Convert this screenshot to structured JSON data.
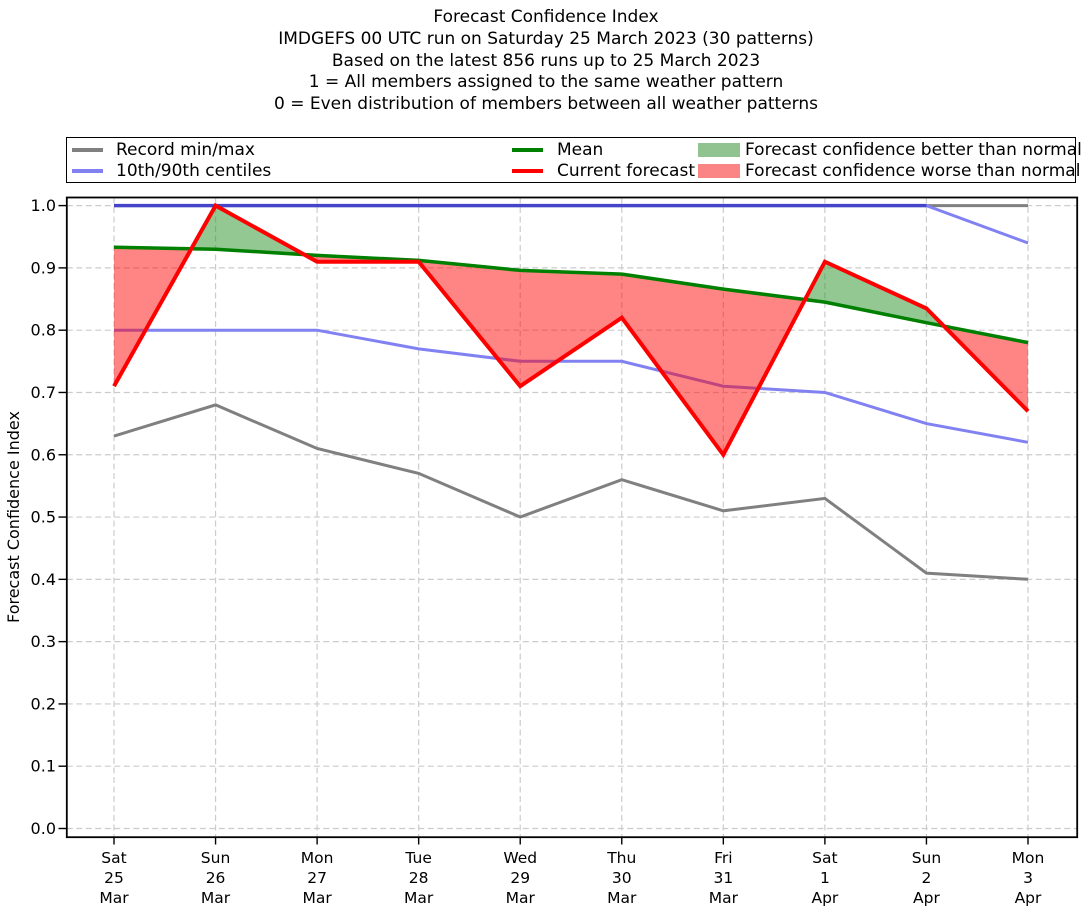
{
  "header": {
    "lines": [
      "Forecast Confidence Index",
      "IMDGEFS 00 UTC run on Saturday 25 March 2023 (30 patterns)",
      "Based on the latest 856 runs up to 25 March 2023",
      "1 = All members assigned to the same weather pattern",
      "0 = Even distribution of members between all weather patterns"
    ]
  },
  "legend": {
    "items": [
      {
        "label": "Record min/max",
        "type": "line",
        "color": "#808080"
      },
      {
        "label": "10th/90th centiles",
        "type": "line",
        "color": "#8181f2"
      },
      {
        "label": "Mean",
        "type": "line",
        "color": "#008000"
      },
      {
        "label": "Current forecast",
        "type": "line",
        "color": "#ff0000"
      },
      {
        "label": "Forecast confidence better than normal",
        "type": "patch",
        "color": "#90c390"
      },
      {
        "label": "Forecast confidence worse than normal",
        "type": "patch",
        "color": "#fb8585"
      }
    ]
  },
  "chart_data": {
    "type": "line",
    "title": "Forecast Confidence Index",
    "ylabel": "Forecast Confidence Index",
    "ylim": [
      0.0,
      1.0
    ],
    "yticks": [
      "0.0",
      "0.1",
      "0.2",
      "0.3",
      "0.4",
      "0.5",
      "0.6",
      "0.7",
      "0.8",
      "0.9",
      "1.0"
    ],
    "grid": true,
    "legend_position": "top",
    "categories": [
      "Sat 25 Mar",
      "Sun 26 Mar",
      "Mon 27 Mar",
      "Tue 28 Mar",
      "Wed 29 Mar",
      "Thu 30 Mar",
      "Fri 31 Mar",
      "Sat 1 Apr",
      "Sun 2 Apr",
      "Mon 3 Apr"
    ],
    "series": [
      {
        "name": "Record max",
        "color": "#808080",
        "width": 3,
        "values": [
          1.0,
          1.0,
          1.0,
          1.0,
          1.0,
          1.0,
          1.0,
          1.0,
          1.0,
          1.0
        ]
      },
      {
        "name": "90th centile",
        "color": "#8181f2",
        "width": 3,
        "values": [
          1.0,
          1.0,
          1.0,
          1.0,
          1.0,
          1.0,
          1.0,
          1.0,
          1.0,
          0.94
        ]
      },
      {
        "name": "10th centile",
        "color": "#8181f2",
        "width": 3,
        "values": [
          0.8,
          0.8,
          0.8,
          0.77,
          0.75,
          0.75,
          0.71,
          0.7,
          0.65,
          0.62
        ]
      },
      {
        "name": "Record min",
        "color": "#808080",
        "width": 3,
        "values": [
          0.63,
          0.68,
          0.61,
          0.57,
          0.5,
          0.56,
          0.51,
          0.53,
          0.41,
          0.4
        ]
      },
      {
        "name": "Mean",
        "color": "#008000",
        "width": 3.5,
        "values": [
          0.933,
          0.93,
          0.92,
          0.912,
          0.896,
          0.89,
          0.866,
          0.845,
          0.812,
          0.78
        ]
      },
      {
        "name": "Current forecast",
        "color": "#ff0000",
        "width": 4,
        "values": [
          0.71,
          1.0,
          0.91,
          0.91,
          0.71,
          0.82,
          0.6,
          0.91,
          0.835,
          0.67
        ]
      }
    ],
    "fills": [
      {
        "name": "better",
        "between": [
          "Current forecast",
          "Mean"
        ],
        "where": "current_above_mean",
        "color": "rgba(40,145,40,0.5)"
      },
      {
        "name": "worse",
        "between": [
          "Current forecast",
          "Mean"
        ],
        "where": "current_below_mean",
        "color": "rgba(255,10,10,0.5)"
      }
    ],
    "p90_record_overlap_color": "#4545c9",
    "grid_color": "#cccccc"
  }
}
